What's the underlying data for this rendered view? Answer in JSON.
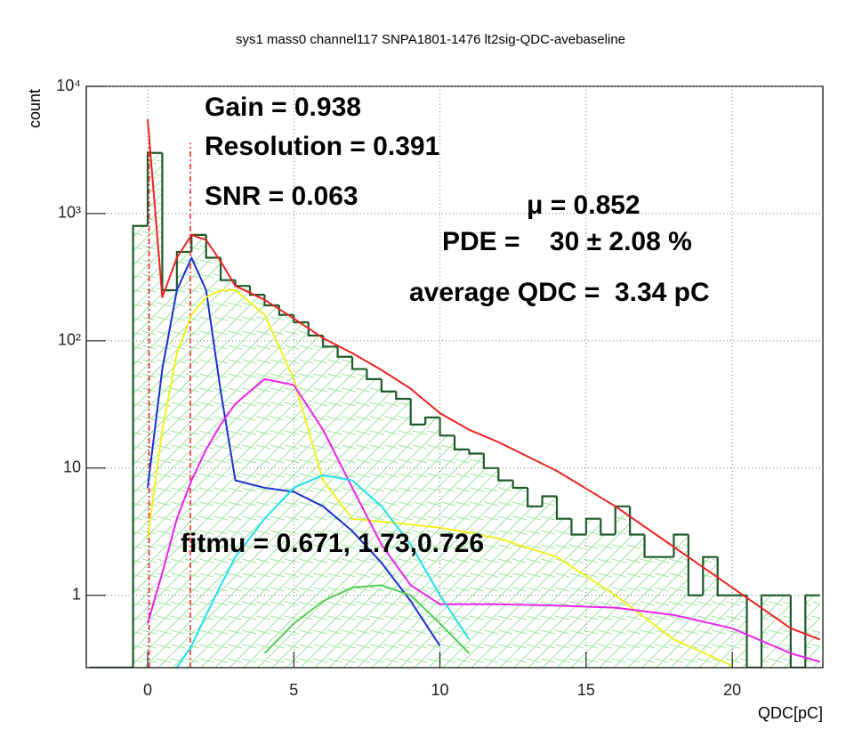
{
  "chart_data": {
    "type": "histogram",
    "title": "sys1  mass0  channel117  SNPA1801-1476  lt2sig-QDC-avebaseline",
    "x_label": "QDC[pC]",
    "y_label": "count",
    "log_y": true,
    "grid": true,
    "xlim": [
      -2.1,
      23.1
    ],
    "ylim": [
      0.27,
      10000
    ],
    "xticks": [
      0,
      5,
      10,
      15,
      20
    ],
    "yticks": [
      1,
      10,
      {
        "value": 100,
        "label": "10²"
      },
      {
        "value": 1000,
        "label": "10³"
      },
      {
        "value": 10000,
        "label": "10⁴"
      }
    ],
    "color": "#1e5a2a",
    "bins": [
      -2,
      -1.5,
      -1,
      -0.5,
      0,
      0.5,
      1,
      1.5,
      2,
      2.5,
      3,
      3.5,
      4,
      4.5,
      5,
      5.5,
      6,
      6.5,
      7,
      7.5,
      8,
      8.5,
      9,
      9.5,
      10,
      10.5,
      11,
      11.5,
      12,
      12.5,
      13,
      13.5,
      14,
      14.5,
      15,
      15.5,
      16,
      16.5,
      17,
      17.5,
      18,
      18.5,
      19,
      19.5,
      20,
      20.5,
      21,
      21.5,
      22,
      22.5,
      23
    ],
    "counts": [
      0,
      0,
      0,
      800,
      3000,
      250,
      500,
      680,
      450,
      300,
      270,
      230,
      190,
      160,
      140,
      110,
      90,
      75,
      60,
      50,
      40,
      35,
      22,
      25,
      18,
      14,
      13,
      10,
      8,
      7,
      5,
      6,
      4,
      3,
      4,
      3,
      5,
      3,
      2,
      2,
      3,
      1,
      2,
      1,
      1,
      0,
      1,
      1,
      0,
      1
    ],
    "fit_x": [
      0,
      0.5,
      1,
      1.5,
      2,
      2.5,
      3,
      4,
      5,
      6,
      7,
      8,
      9,
      10,
      11,
      12,
      14,
      16,
      18,
      20,
      22,
      23
    ],
    "fits": [
      {
        "color": "#ee2222",
        "values": [
          5500,
          220,
          450,
          680,
          620,
          420,
          270,
          210,
          150,
          105,
          80,
          59,
          42,
          27,
          20,
          16,
          9.5,
          5,
          2.4,
          1.15,
          0.55,
          0.45
        ]
      },
      {
        "color": "#1c2fd0",
        "values": [
          7,
          60,
          250,
          450,
          250,
          40,
          8,
          7,
          6.5,
          5,
          3.2,
          1.8,
          0.9,
          0.4,
          null,
          null,
          null,
          null,
          null,
          null,
          null,
          null
        ]
      },
      {
        "color": "#f2f020",
        "values": [
          2.8,
          20,
          80,
          160,
          220,
          250,
          250,
          160,
          50,
          8,
          4,
          3.8,
          3.6,
          3.4,
          3.1,
          2.8,
          2,
          1,
          0.45,
          0.28,
          null,
          null
        ]
      },
      {
        "color": "#ee22ee",
        "values": [
          0.6,
          1.5,
          4,
          8,
          14,
          22,
          32,
          50,
          45,
          20,
          7,
          2.5,
          1.2,
          0.85,
          0.85,
          0.85,
          0.83,
          0.8,
          0.7,
          0.55,
          0.35,
          0.3
        ]
      },
      {
        "color": "#22e0f0",
        "values": [
          null,
          null,
          0.27,
          0.4,
          0.7,
          1.2,
          2,
          4,
          7,
          8.8,
          8,
          5,
          2.5,
          1,
          0.45,
          null,
          null,
          null,
          null,
          null,
          null,
          null
        ]
      },
      {
        "color": "#55cc55",
        "values": [
          null,
          null,
          null,
          null,
          null,
          null,
          null,
          0.35,
          0.6,
          0.9,
          1.15,
          1.2,
          1,
          0.6,
          0.35,
          null,
          null,
          null,
          null,
          null,
          null,
          null
        ]
      }
    ],
    "vlines": {
      "color": "#ee2222",
      "x": [
        0.05,
        1.46
      ],
      "top": 3600
    },
    "annotations": [
      "Gain = 0.938",
      "Resolution = 0.391",
      "SNR = 0.063",
      "μ = 0.852",
      "PDE =    30 ± 2.08 %",
      "average QDC =  3.34 pC",
      "fitmu = 0.671, 1.73,0.726"
    ]
  }
}
